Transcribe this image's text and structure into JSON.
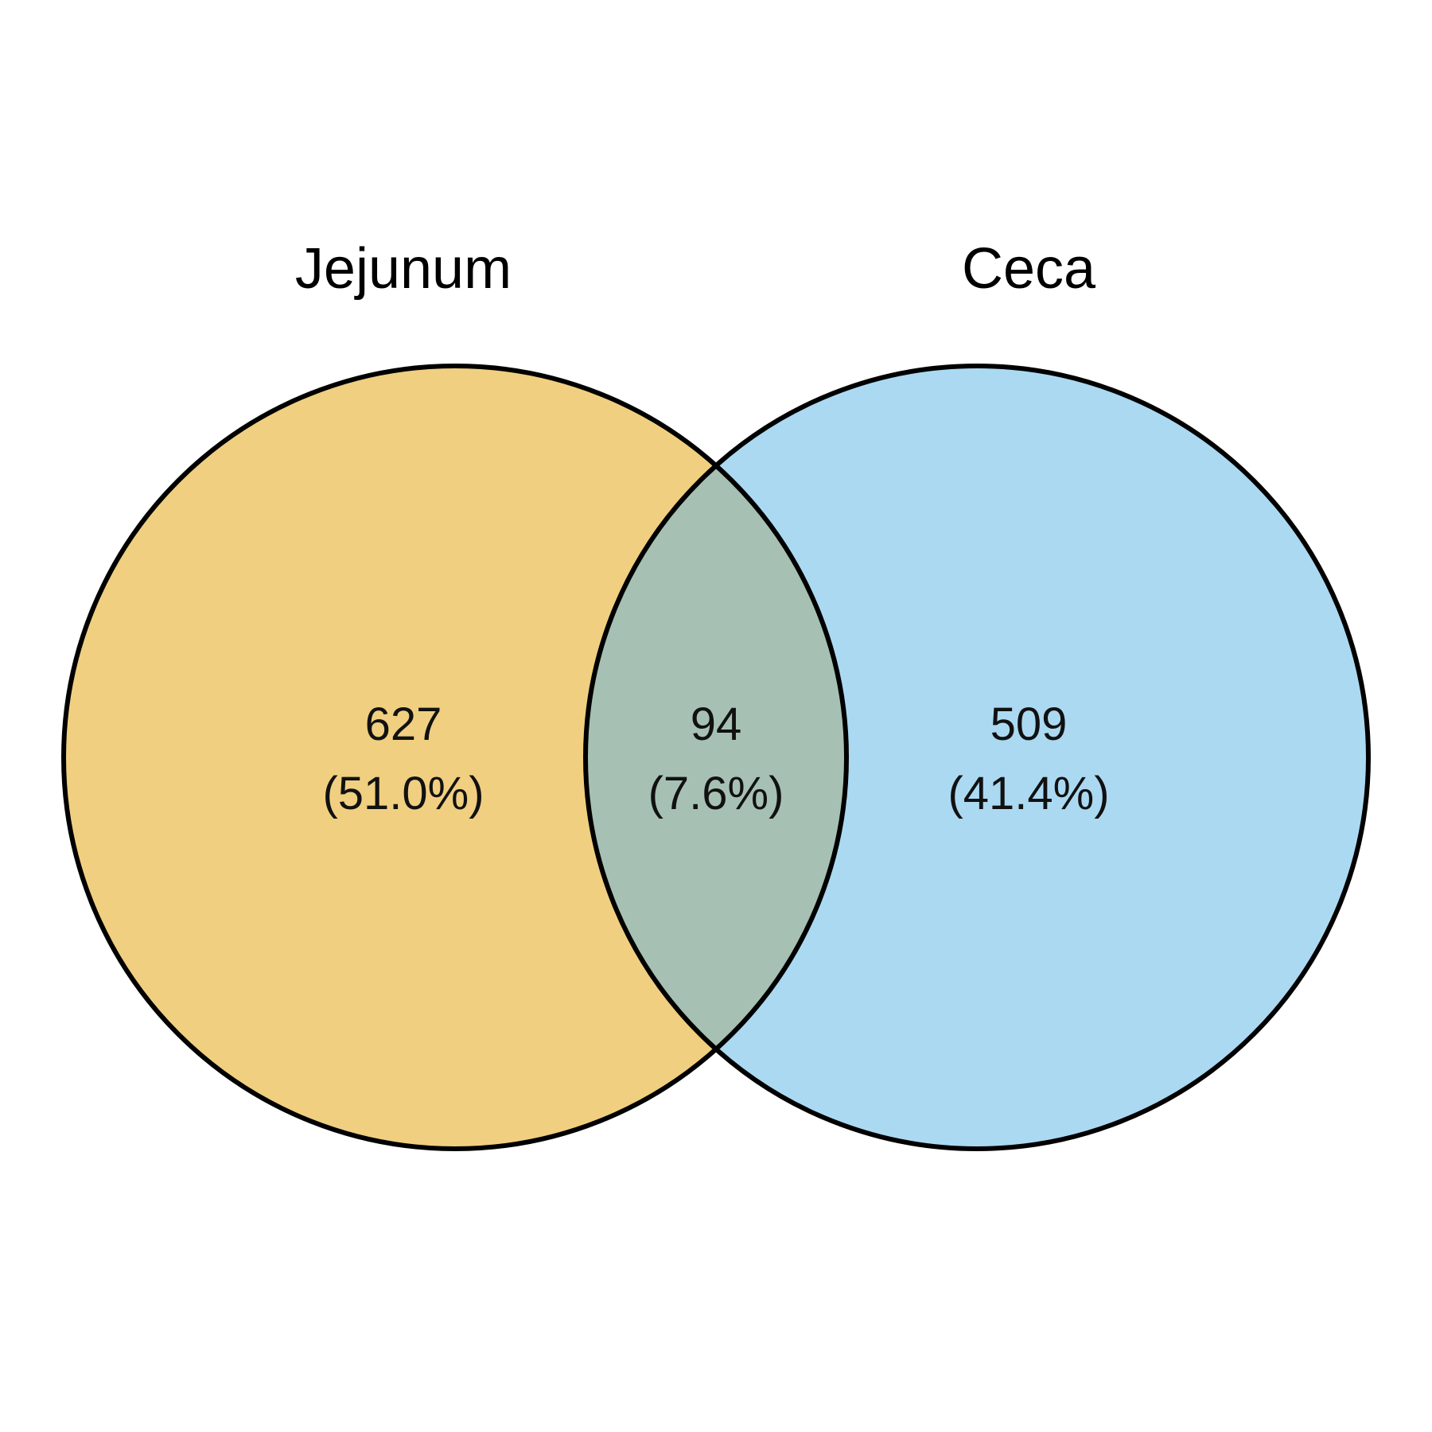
{
  "diagram": {
    "type": "venn-2",
    "sets": [
      {
        "name": "Jejunum",
        "color": "#F0CF80"
      },
      {
        "name": "Ceca",
        "color": "#ABD9F2"
      }
    ],
    "intersection_color": "#A6C1B3",
    "outline_color": "#000000",
    "regions": [
      {
        "id": "jejunum-only",
        "count": "627",
        "percent": "(51.0%)"
      },
      {
        "id": "shared",
        "count": "94",
        "percent": "(7.6%)"
      },
      {
        "id": "ceca-only",
        "count": "509",
        "percent": "(41.4%)"
      }
    ]
  }
}
